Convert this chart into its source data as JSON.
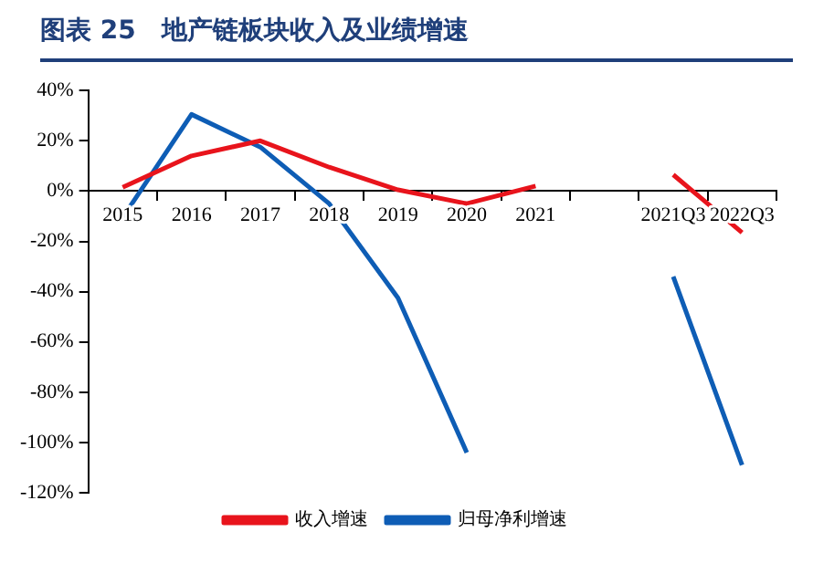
{
  "chart_data": {
    "type": "line",
    "title": "图表 25　地产链板块收入及业绩增速",
    "categories": [
      "2015",
      "2016",
      "2017",
      "2018",
      "2019",
      "2020",
      "2021",
      null,
      "2021Q3",
      "2022Q3"
    ],
    "series": [
      {
        "name": "收入增速",
        "color": "#e8141c",
        "values": [
          1.5,
          14,
          20,
          9.5,
          0.5,
          -5,
          2,
          null,
          6.5,
          -16.5
        ]
      },
      {
        "name": "归母净利增速",
        "color": "#0e5db5",
        "values": [
          -10.5,
          30.5,
          17.5,
          -5,
          -42.5,
          -104,
          null,
          null,
          -34,
          -109
        ]
      }
    ],
    "ylim": [
      -120,
      40
    ],
    "yticks": [
      {
        "value": -120,
        "label": "-120%"
      },
      {
        "value": -100,
        "label": "-100%"
      },
      {
        "value": -80,
        "label": "-80%"
      },
      {
        "value": -60,
        "label": "-60%"
      },
      {
        "value": -40,
        "label": "-40%"
      },
      {
        "value": -20,
        "label": "-20%"
      },
      {
        "value": 0,
        "label": "0%"
      },
      {
        "value": 20,
        "label": "20%"
      },
      {
        "value": 40,
        "label": "40%"
      }
    ],
    "grid": false,
    "legend": "bottom",
    "marker": "none",
    "line_style": "solid"
  }
}
